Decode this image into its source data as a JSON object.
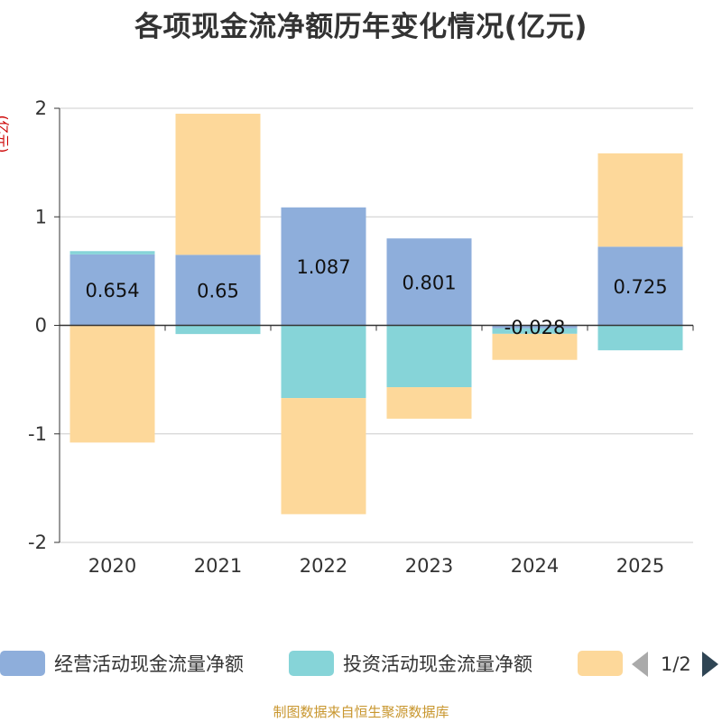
{
  "title": "各项现金流净额历年变化情况(亿元)",
  "unit_label": "(亿元)",
  "source": "制图数据来自恒生聚源数据库",
  "pager": "1/2",
  "colors": {
    "operating": "#8eaedb",
    "investing": "#86d4d8",
    "financing": "#fdd89a"
  },
  "chart_data": {
    "type": "bar",
    "stacked": true,
    "title": "各项现金流净额历年变化情况(亿元)",
    "ylabel": "(亿元)",
    "ylim": [
      -2,
      2
    ],
    "yticks": [
      -2,
      -1,
      0,
      1,
      2
    ],
    "grid": true,
    "legend_position": "bottom",
    "categories": [
      "2020",
      "2021",
      "2022",
      "2023",
      "2024",
      "2025"
    ],
    "series": [
      {
        "name": "经营活动现金流量净额",
        "values": [
          0.654,
          0.65,
          1.087,
          0.801,
          -0.028,
          0.725
        ],
        "labels": [
          "0.654",
          "0.65",
          "1.087",
          "0.801",
          "-0.028",
          "0.725"
        ]
      },
      {
        "name": "投资活动现金流量净额",
        "values": [
          0.03,
          -0.08,
          -0.67,
          -0.57,
          -0.05,
          -0.23
        ]
      },
      {
        "name": "",
        "values": [
          -1.08,
          1.3,
          -1.07,
          -0.29,
          -0.24,
          0.86
        ]
      }
    ]
  }
}
